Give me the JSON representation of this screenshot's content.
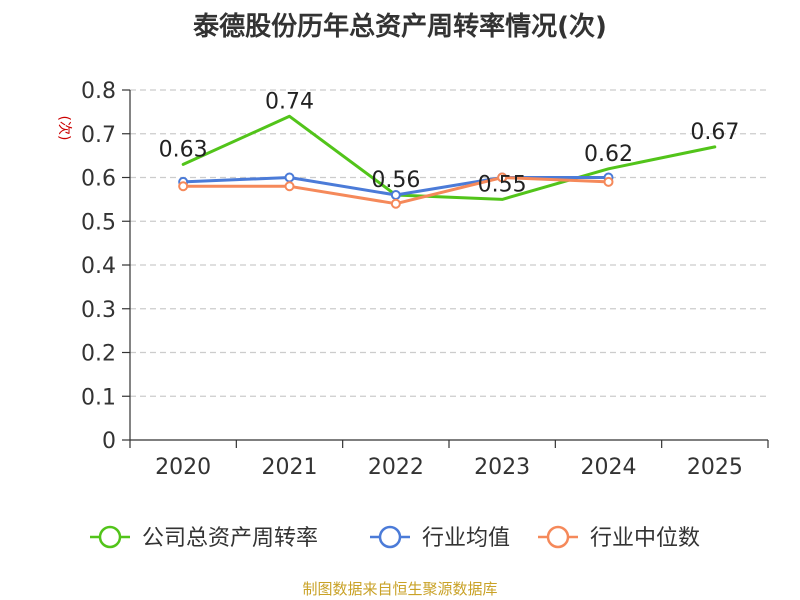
{
  "title": "泰德股份历年总资产周转率情况(次)",
  "source": "制图数据来自恒生聚源数据库",
  "chart_data": {
    "type": "line",
    "ylabel": "(次)",
    "ylim": [
      0,
      0.8
    ],
    "yticks": [
      "0",
      "0.1",
      "0.2",
      "0.3",
      "0.4",
      "0.5",
      "0.6",
      "0.7",
      "0.8"
    ],
    "grid": "dashed horizontal",
    "legend_position": "bottom",
    "categories": [
      "2020",
      "2021",
      "2022",
      "2023",
      "2024",
      "2025"
    ],
    "series": [
      {
        "name": "公司总资产周转率",
        "color": "#52c41a",
        "values": [
          0.63,
          0.74,
          0.56,
          0.55,
          0.62,
          0.67
        ],
        "labels": [
          "0.63",
          "0.74",
          "0.56",
          "0.55",
          "0.62",
          "0.67"
        ],
        "markers": false
      },
      {
        "name": "行业均值",
        "color": "#4b7bd8",
        "values": [
          0.59,
          0.6,
          0.56,
          0.6,
          0.6,
          null
        ],
        "markers": true
      },
      {
        "name": "行业中位数",
        "color": "#f5895a",
        "values": [
          0.58,
          0.58,
          0.54,
          0.6,
          0.59,
          null
        ],
        "markers": true
      }
    ]
  }
}
